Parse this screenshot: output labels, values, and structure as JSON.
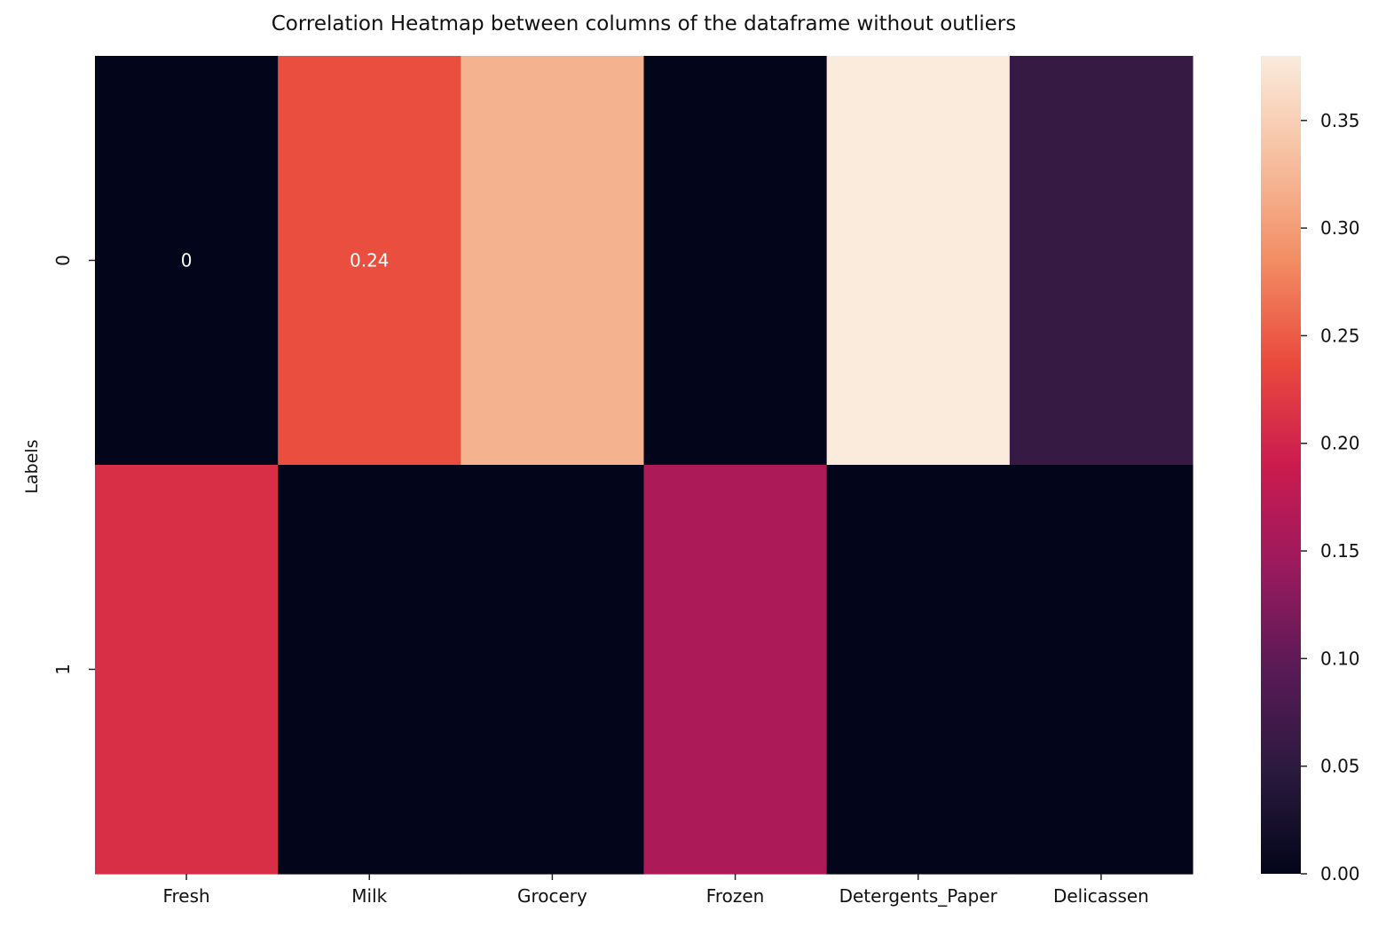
{
  "chart_data": {
    "type": "heatmap",
    "title": "Correlation Heatmap between columns of the dataframe without outliers",
    "xlabel": "",
    "ylabel": "Labels",
    "columns": [
      "Fresh",
      "Milk",
      "Grocery",
      "Frozen",
      "Detergents_Paper",
      "Delicassen"
    ],
    "rows": [
      "0",
      "1"
    ],
    "values": [
      [
        0.0,
        0.24,
        0.32,
        0.0,
        0.38,
        0.06
      ],
      [
        0.21,
        0.0,
        0.0,
        0.16,
        0.0,
        0.0
      ]
    ],
    "annotations": [
      {
        "row": 0,
        "col": 0,
        "text": "0"
      },
      {
        "row": 0,
        "col": 1,
        "text": "0.24"
      }
    ],
    "colorbar": {
      "colormap": "rocket",
      "range": [
        0.0,
        0.38
      ],
      "ticks": [
        "0.00",
        "0.05",
        "0.10",
        "0.15",
        "0.20",
        "0.25",
        "0.30",
        "0.35"
      ]
    }
  }
}
